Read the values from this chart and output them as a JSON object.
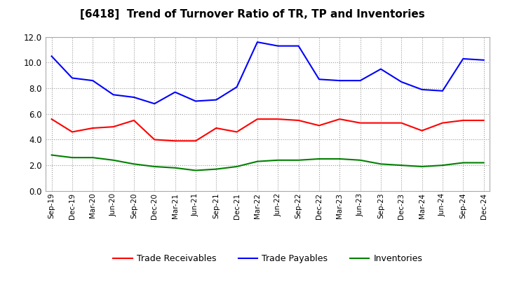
{
  "title": "[6418]  Trend of Turnover Ratio of TR, TP and Inventories",
  "x_labels": [
    "Sep-19",
    "Dec-19",
    "Mar-20",
    "Jun-20",
    "Sep-20",
    "Dec-20",
    "Mar-21",
    "Jun-21",
    "Sep-21",
    "Dec-21",
    "Mar-22",
    "Jun-22",
    "Sep-22",
    "Dec-22",
    "Mar-23",
    "Jun-23",
    "Sep-23",
    "Dec-23",
    "Mar-24",
    "Jun-24",
    "Sep-24",
    "Dec-24"
  ],
  "trade_receivables": [
    5.6,
    4.6,
    4.9,
    5.0,
    5.5,
    4.0,
    3.9,
    3.9,
    4.9,
    4.6,
    5.6,
    5.6,
    5.5,
    5.1,
    5.6,
    5.3,
    5.3,
    5.3,
    4.7,
    5.3,
    5.5,
    5.5
  ],
  "trade_payables": [
    10.5,
    8.8,
    8.6,
    7.5,
    7.3,
    6.8,
    7.7,
    7.0,
    7.1,
    8.1,
    11.6,
    11.3,
    11.3,
    8.7,
    8.6,
    8.6,
    9.5,
    8.5,
    7.9,
    7.8,
    10.3,
    10.2
  ],
  "inventories": [
    2.8,
    2.6,
    2.6,
    2.4,
    2.1,
    1.9,
    1.8,
    1.6,
    1.7,
    1.9,
    2.3,
    2.4,
    2.4,
    2.5,
    2.5,
    2.4,
    2.1,
    2.0,
    1.9,
    2.0,
    2.2,
    2.2
  ],
  "ylim": [
    0.0,
    12.0
  ],
  "yticks": [
    0.0,
    2.0,
    4.0,
    6.0,
    8.0,
    10.0,
    12.0
  ],
  "colors": {
    "trade_receivables": "#ff0000",
    "trade_payables": "#0000ff",
    "inventories": "#008000"
  },
  "legend_labels": [
    "Trade Receivables",
    "Trade Payables",
    "Inventories"
  ],
  "background_color": "#ffffff",
  "grid_color": "#aaaaaa"
}
